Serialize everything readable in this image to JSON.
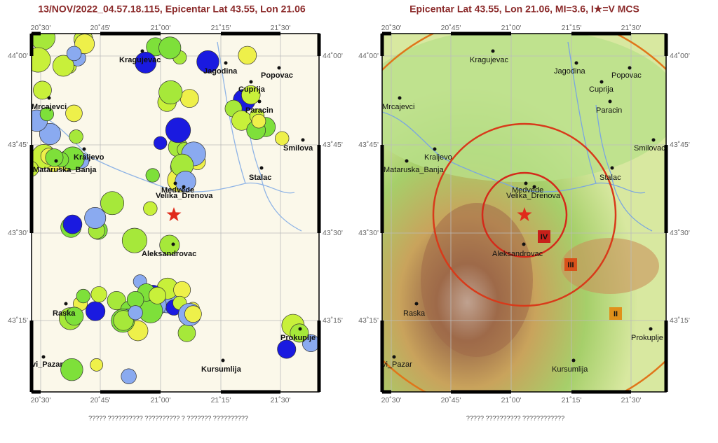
{
  "maps": [
    {
      "title": "13/NOV/2022_04.57.18.115, Epicentar Lat 43.55, Lon 21.06",
      "lon_labels": [
        "20˚30'",
        "20˚45'",
        "21˚00'",
        "21˚15'",
        "21˚30'"
      ],
      "lat_labels": [
        "44˚00'",
        "43˚45'",
        "43˚30'",
        "43˚15'"
      ],
      "places": [
        "Kragujevac",
        "Jagodina",
        "Popovac",
        "Cuprija",
        "Mrcajevci",
        "Paracin",
        "Smilova",
        "Kraljevo",
        "Mataruska_Banja",
        "Stalac",
        "Medvede",
        "Velika_Drenova",
        "Aleksandrovac",
        "Raska",
        "Prokuplje",
        "vi_Pazar",
        "Kursumlija"
      ],
      "caption": "????? ?????????? ?????????? ? ??????? ??????????"
    },
    {
      "title": "Epicentar Lat 43.55, Lon 21.06, MI=3.6, I★=V MCS",
      "lon_labels": [
        "20˚30'",
        "20˚45'",
        "21˚00'",
        "21˚15'",
        "21˚30'"
      ],
      "lat_labels": [
        "44˚00'",
        "43˚45'",
        "43˚30'",
        "43˚15'"
      ],
      "places": [
        "Kragujevac",
        "Jagodina",
        "Popovac",
        "Cuprija",
        "Mrcajevci",
        "Paracin",
        "Smilovac",
        "Kraljevo",
        "Mataruska_Banja",
        "Stalac",
        "Medvede",
        "Velika_Drenova",
        "Aleksandrovac",
        "Raska",
        "Prokuplje",
        "vi_Pazar",
        "Kursumlija"
      ],
      "intensity_labels": [
        "IV",
        "III",
        "II"
      ],
      "caption": "????? ?????????? ????????????"
    }
  ]
}
